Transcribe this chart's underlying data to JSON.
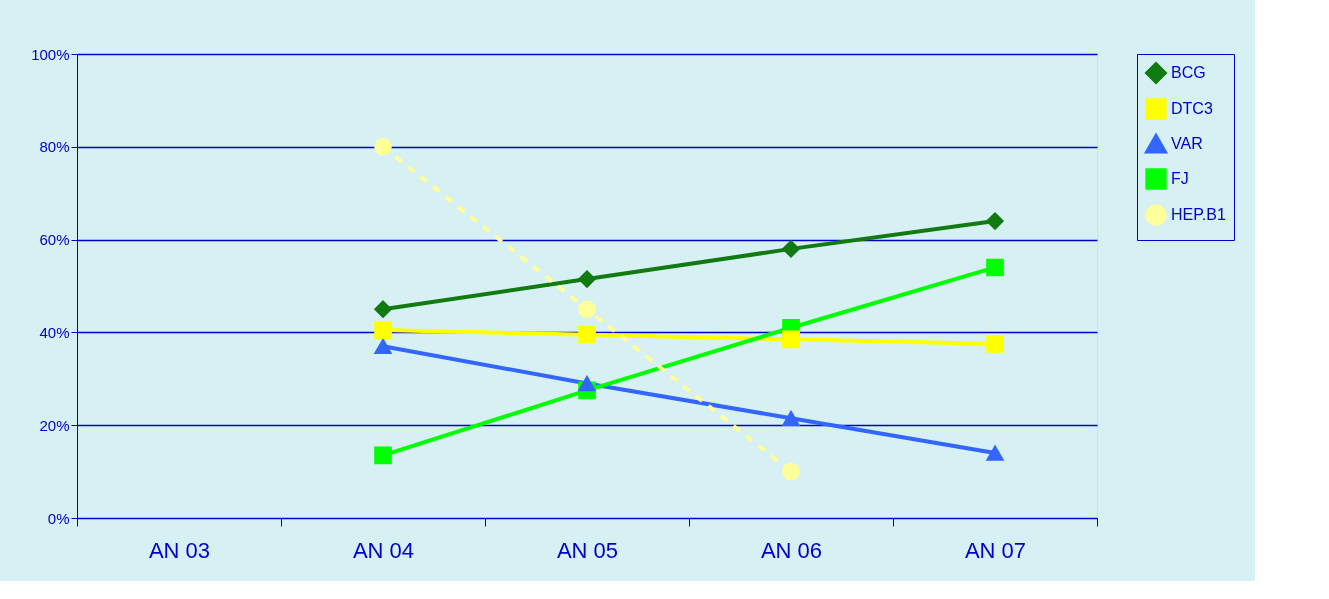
{
  "chart_data": {
    "type": "line",
    "categories": [
      "AN 03",
      "AN 04",
      "AN 05",
      "AN 06",
      "AN 07"
    ],
    "ylim": [
      0,
      100
    ],
    "yticks": [
      {
        "value": 0,
        "label": "0%"
      },
      {
        "value": 20,
        "label": "20%"
      },
      {
        "value": 40,
        "label": "40%"
      },
      {
        "value": 60,
        "label": "60%"
      },
      {
        "value": 80,
        "label": "80%"
      },
      {
        "value": 100,
        "label": "100%"
      }
    ],
    "grid": "y",
    "legend": "right",
    "series": [
      {
        "name": "BCG",
        "color": "#117a11",
        "marker": "diamond",
        "line_style": "solid",
        "values": [
          null,
          45,
          51.5,
          58,
          64
        ]
      },
      {
        "name": "DTC3",
        "color": "#ffff00",
        "marker": "square",
        "line_style": "solid",
        "values": [
          null,
          40.5,
          39.5,
          38.5,
          37.5
        ]
      },
      {
        "name": "VAR",
        "color": "#3366ff",
        "marker": "triangle",
        "line_style": "solid",
        "values": [
          null,
          37,
          29,
          21.5,
          14
        ]
      },
      {
        "name": "FJ",
        "color": "#00ff00",
        "marker": "square",
        "line_style": "solid",
        "values": [
          null,
          13.5,
          27.5,
          41,
          54
        ]
      },
      {
        "name": "HEP.B1",
        "color": "#ffff99",
        "marker": "circle",
        "line_style": "dashed",
        "values": [
          null,
          80,
          45,
          10,
          null
        ]
      }
    ]
  }
}
